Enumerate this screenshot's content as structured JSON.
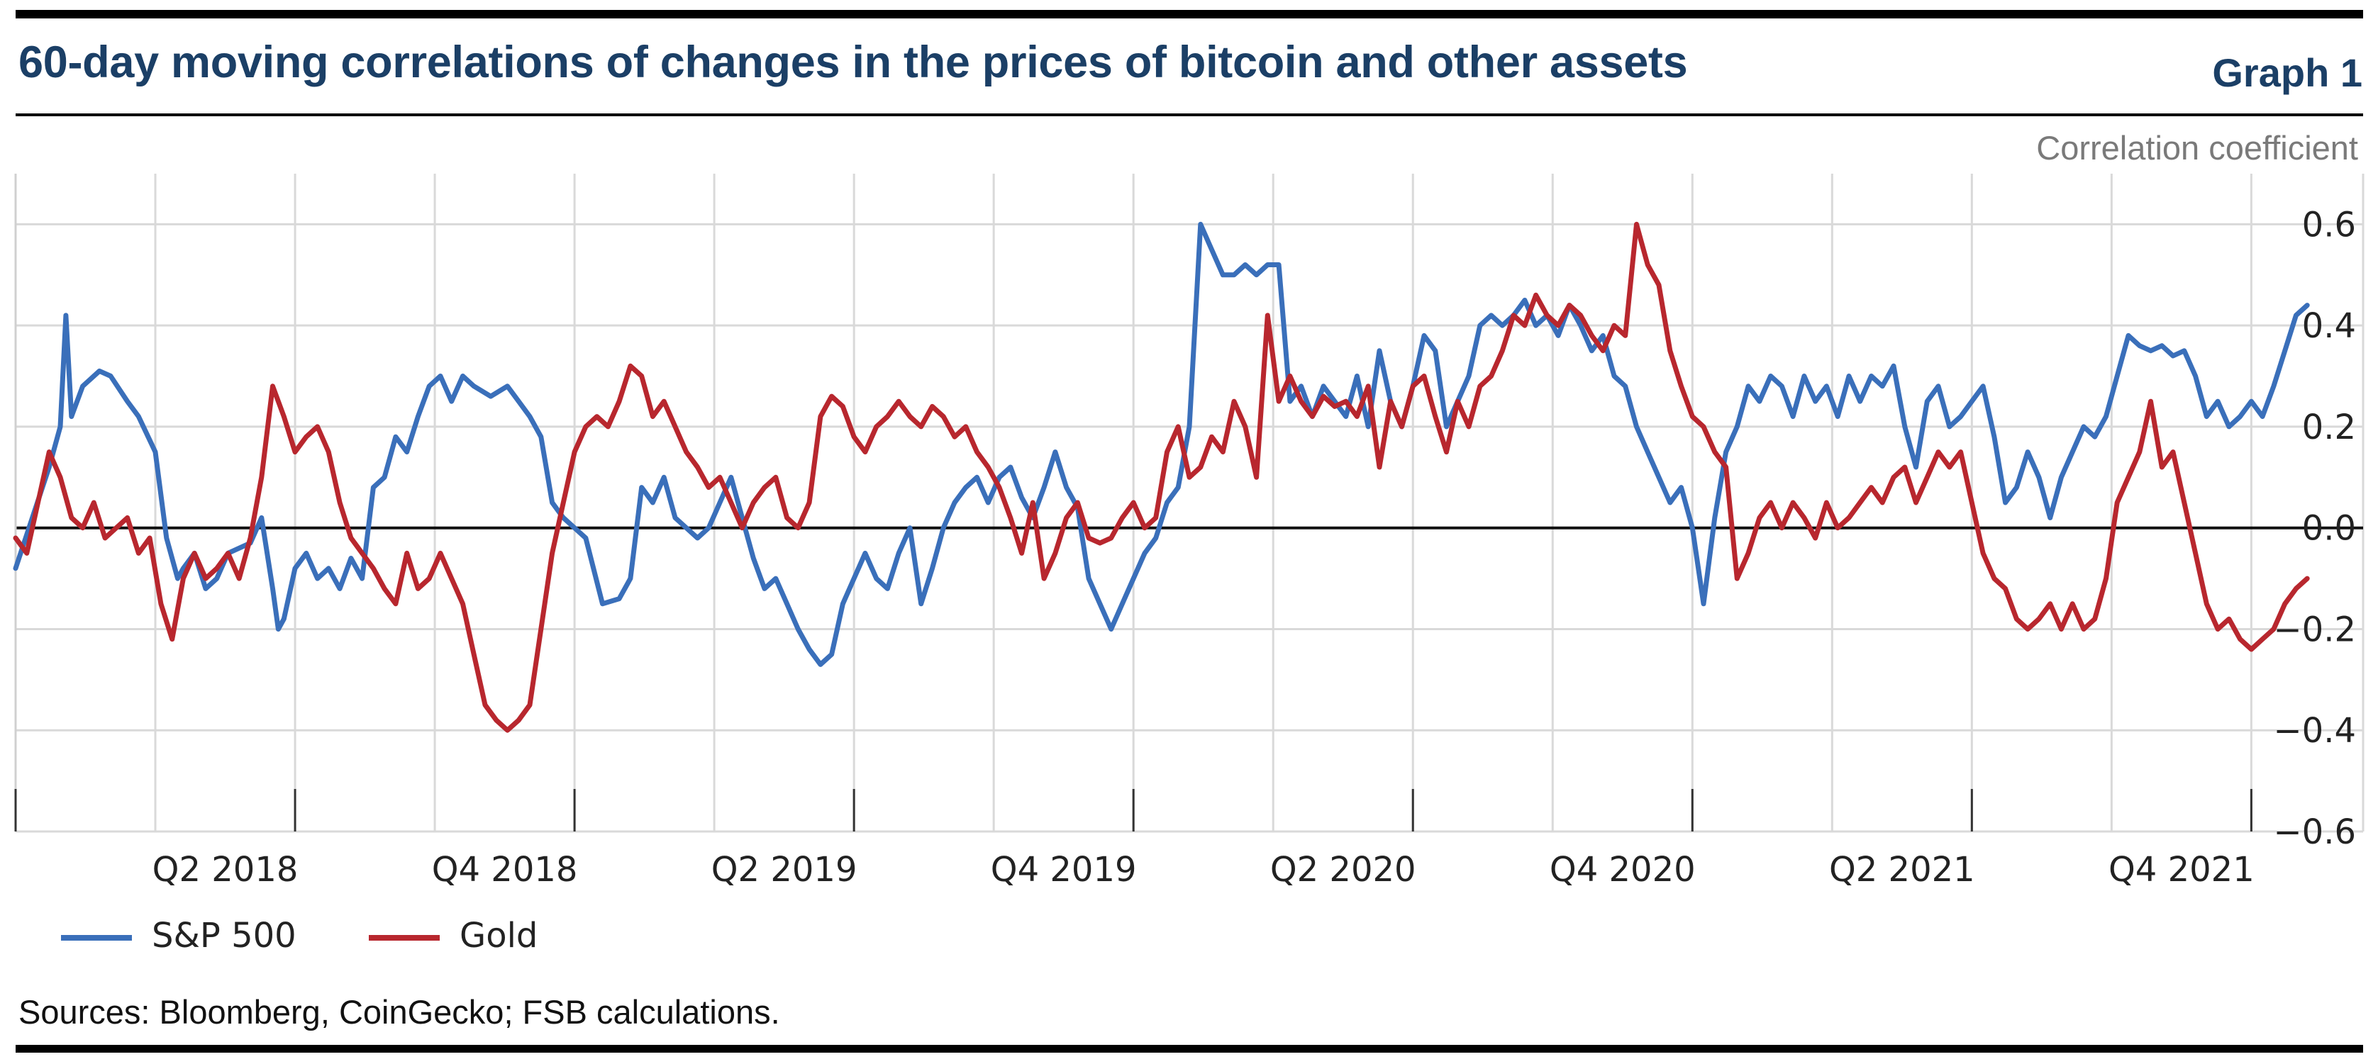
{
  "header": {
    "title": "60-day moving correlations of changes in the prices of bitcoin and other assets",
    "graph_label": "Graph 1"
  },
  "footer": {
    "sources": "Sources: Bloomberg, CoinGecko; FSB calculations."
  },
  "colors": {
    "sp500": "#3a6fba",
    "gold": "#b8272e",
    "title": "#1b3f66",
    "grid": "#d9d9d9"
  },
  "chart_data": {
    "type": "line",
    "title": "60-day moving correlations of changes in the prices of bitcoin and other assets",
    "ylabel": "Correlation coefficient",
    "xlabel": "",
    "ylim": [
      -0.6,
      0.7
    ],
    "yticks": [
      0.6,
      0.4,
      0.2,
      0.0,
      -0.2,
      -0.4,
      -0.6
    ],
    "ytick_labels": [
      "0.6",
      "0.4",
      "0.2",
      "0.0",
      "−0.2",
      "−0.4",
      "−0.6"
    ],
    "xlim": [
      2018.0,
      2022.2
    ],
    "x_major_ticks": [
      2018.0,
      2018.5,
      2019.0,
      2019.5,
      2020.0,
      2020.5,
      2021.0,
      2021.5,
      2022.0
    ],
    "x_gridlines": [
      2018.0,
      2018.25,
      2018.5,
      2018.75,
      2019.0,
      2019.25,
      2019.5,
      2019.75,
      2020.0,
      2020.25,
      2020.5,
      2020.75,
      2021.0,
      2021.25,
      2021.5,
      2021.75,
      2022.0,
      2022.25
    ],
    "x_labels": [
      {
        "label": "Q2 2018",
        "x": 2018.375
      },
      {
        "label": "Q4 2018",
        "x": 2018.875
      },
      {
        "label": "Q2 2019",
        "x": 2019.375
      },
      {
        "label": "Q4 2019",
        "x": 2019.875
      },
      {
        "label": "Q2 2020",
        "x": 2020.375
      },
      {
        "label": "Q4 2020",
        "x": 2020.875
      },
      {
        "label": "Q2 2021",
        "x": 2021.375
      },
      {
        "label": "Q4 2021",
        "x": 2021.875
      }
    ],
    "grid": true,
    "legend": "bottom-left",
    "series": [
      {
        "name": "S&P 500",
        "color": "#3a6fba",
        "x": [
          2018.0,
          2018.03,
          2018.06,
          2018.08,
          2018.09,
          2018.1,
          2018.12,
          2018.15,
          2018.17,
          2018.2,
          2018.22,
          2018.25,
          2018.27,
          2018.29,
          2018.3,
          2018.32,
          2018.34,
          2018.36,
          2018.38,
          2018.42,
          2018.44,
          2018.46,
          2018.47,
          2018.48,
          2018.5,
          2018.52,
          2018.54,
          2018.56,
          2018.58,
          2018.6,
          2018.62,
          2018.64,
          2018.66,
          2018.68,
          2018.7,
          2018.72,
          2018.74,
          2018.76,
          2018.78,
          2018.8,
          2018.82,
          2018.85,
          2018.88,
          2018.9,
          2018.92,
          2018.94,
          2018.96,
          2018.98,
          2019.0,
          2019.02,
          2019.05,
          2019.08,
          2019.1,
          2019.12,
          2019.14,
          2019.16,
          2019.18,
          2019.2,
          2019.22,
          2019.24,
          2019.26,
          2019.28,
          2019.3,
          2019.32,
          2019.34,
          2019.36,
          2019.38,
          2019.4,
          2019.42,
          2019.44,
          2019.46,
          2019.48,
          2019.5,
          2019.52,
          2019.54,
          2019.56,
          2019.58,
          2019.6,
          2019.62,
          2019.64,
          2019.66,
          2019.68,
          2019.7,
          2019.72,
          2019.74,
          2019.76,
          2019.78,
          2019.8,
          2019.82,
          2019.84,
          2019.86,
          2019.88,
          2019.9,
          2019.92,
          2019.94,
          2019.96,
          2019.98,
          2020.0,
          2020.02,
          2020.04,
          2020.06,
          2020.08,
          2020.1,
          2020.12,
          2020.14,
          2020.16,
          2020.18,
          2020.2,
          2020.22,
          2020.24,
          2020.26,
          2020.28,
          2020.3,
          2020.32,
          2020.34,
          2020.36,
          2020.38,
          2020.4,
          2020.42,
          2020.44,
          2020.46,
          2020.48,
          2020.5,
          2020.52,
          2020.54,
          2020.56,
          2020.58,
          2020.6,
          2020.62,
          2020.64,
          2020.66,
          2020.68,
          2020.7,
          2020.72,
          2020.74,
          2020.76,
          2020.78,
          2020.8,
          2020.82,
          2020.84,
          2020.86,
          2020.88,
          2020.9,
          2020.92,
          2020.94,
          2020.96,
          2020.98,
          2021.0,
          2021.02,
          2021.04,
          2021.06,
          2021.08,
          2021.1,
          2021.12,
          2021.14,
          2021.16,
          2021.18,
          2021.2,
          2021.22,
          2021.24,
          2021.26,
          2021.28,
          2021.3,
          2021.32,
          2021.34,
          2021.36,
          2021.38,
          2021.4,
          2021.42,
          2021.44,
          2021.46,
          2021.48,
          2021.5,
          2021.52,
          2021.54,
          2021.56,
          2021.58,
          2021.6,
          2021.62,
          2021.64,
          2021.66,
          2021.68,
          2021.7,
          2021.72,
          2021.74,
          2021.76,
          2021.78,
          2021.8,
          2021.82,
          2021.84,
          2021.86,
          2021.88,
          2021.9,
          2021.92,
          2021.94,
          2021.96,
          2021.98,
          2022.0,
          2022.02,
          2022.04,
          2022.06,
          2022.08,
          2022.1
        ],
        "values": [
          -0.08,
          0.02,
          0.12,
          0.2,
          0.42,
          0.22,
          0.28,
          0.31,
          0.3,
          0.25,
          0.22,
          0.15,
          -0.02,
          -0.1,
          -0.08,
          -0.05,
          -0.12,
          -0.1,
          -0.05,
          -0.03,
          0.02,
          -0.12,
          -0.2,
          -0.18,
          -0.08,
          -0.05,
          -0.1,
          -0.08,
          -0.12,
          -0.06,
          -0.1,
          0.08,
          0.1,
          0.18,
          0.15,
          0.22,
          0.28,
          0.3,
          0.25,
          0.3,
          0.28,
          0.26,
          0.28,
          0.25,
          0.22,
          0.18,
          0.05,
          0.02,
          0.0,
          -0.02,
          -0.15,
          -0.14,
          -0.1,
          0.08,
          0.05,
          0.1,
          0.02,
          0.0,
          -0.02,
          0.0,
          0.05,
          0.1,
          0.02,
          -0.06,
          -0.12,
          -0.1,
          -0.15,
          -0.2,
          -0.24,
          -0.27,
          -0.25,
          -0.15,
          -0.1,
          -0.05,
          -0.1,
          -0.12,
          -0.05,
          0.0,
          -0.15,
          -0.08,
          0.0,
          0.05,
          0.08,
          0.1,
          0.05,
          0.1,
          0.12,
          0.06,
          0.02,
          0.08,
          0.15,
          0.08,
          0.04,
          -0.1,
          -0.15,
          -0.2,
          -0.15,
          -0.1,
          -0.05,
          -0.02,
          0.05,
          0.08,
          0.2,
          0.6,
          0.55,
          0.5,
          0.5,
          0.52,
          0.5,
          0.52,
          0.52,
          0.25,
          0.28,
          0.22,
          0.28,
          0.25,
          0.22,
          0.3,
          0.2,
          0.35,
          0.25,
          0.2,
          0.28,
          0.38,
          0.35,
          0.2,
          0.25,
          0.3,
          0.4,
          0.42,
          0.4,
          0.42,
          0.45,
          0.4,
          0.42,
          0.38,
          0.44,
          0.4,
          0.35,
          0.38,
          0.3,
          0.28,
          0.2,
          0.15,
          0.1,
          0.05,
          0.08,
          0.0,
          -0.15,
          0.02,
          0.15,
          0.2,
          0.28,
          0.25,
          0.3,
          0.28,
          0.22,
          0.3,
          0.25,
          0.28,
          0.22,
          0.3,
          0.25,
          0.3,
          0.28,
          0.32,
          0.2,
          0.12,
          0.25,
          0.28,
          0.2,
          0.22,
          0.25,
          0.28,
          0.18,
          0.05,
          0.08,
          0.15,
          0.1,
          0.02,
          0.1,
          0.15,
          0.2,
          0.18,
          0.22,
          0.3,
          0.38,
          0.36,
          0.35,
          0.36,
          0.34,
          0.35,
          0.3,
          0.22,
          0.25,
          0.2,
          0.22,
          0.25,
          0.22,
          0.28,
          0.35,
          0.42,
          0.44
        ]
      },
      {
        "name": "Gold",
        "color": "#b8272e",
        "x": [
          2018.0,
          2018.02,
          2018.04,
          2018.06,
          2018.08,
          2018.1,
          2018.12,
          2018.14,
          2018.16,
          2018.18,
          2018.2,
          2018.22,
          2018.24,
          2018.26,
          2018.28,
          2018.3,
          2018.32,
          2018.34,
          2018.36,
          2018.38,
          2018.4,
          2018.42,
          2018.44,
          2018.46,
          2018.48,
          2018.5,
          2018.52,
          2018.54,
          2018.56,
          2018.58,
          2018.6,
          2018.62,
          2018.64,
          2018.66,
          2018.68,
          2018.7,
          2018.72,
          2018.74,
          2018.76,
          2018.78,
          2018.8,
          2018.82,
          2018.84,
          2018.86,
          2018.88,
          2018.9,
          2018.92,
          2018.94,
          2018.96,
          2018.98,
          2019.0,
          2019.02,
          2019.04,
          2019.06,
          2019.08,
          2019.1,
          2019.12,
          2019.14,
          2019.16,
          2019.18,
          2019.2,
          2019.22,
          2019.24,
          2019.26,
          2019.28,
          2019.3,
          2019.32,
          2019.34,
          2019.36,
          2019.38,
          2019.4,
          2019.42,
          2019.44,
          2019.46,
          2019.48,
          2019.5,
          2019.52,
          2019.54,
          2019.56,
          2019.58,
          2019.6,
          2019.62,
          2019.64,
          2019.66,
          2019.68,
          2019.7,
          2019.72,
          2019.74,
          2019.76,
          2019.78,
          2019.8,
          2019.82,
          2019.84,
          2019.86,
          2019.88,
          2019.9,
          2019.92,
          2019.94,
          2019.96,
          2019.98,
          2020.0,
          2020.02,
          2020.04,
          2020.06,
          2020.08,
          2020.1,
          2020.12,
          2020.14,
          2020.16,
          2020.18,
          2020.2,
          2020.22,
          2020.24,
          2020.26,
          2020.28,
          2020.3,
          2020.32,
          2020.34,
          2020.36,
          2020.38,
          2020.4,
          2020.42,
          2020.44,
          2020.46,
          2020.48,
          2020.5,
          2020.52,
          2020.54,
          2020.56,
          2020.58,
          2020.6,
          2020.62,
          2020.64,
          2020.66,
          2020.68,
          2020.7,
          2020.72,
          2020.74,
          2020.76,
          2020.78,
          2020.8,
          2020.82,
          2020.84,
          2020.86,
          2020.88,
          2020.9,
          2020.92,
          2020.94,
          2020.96,
          2020.98,
          2021.0,
          2021.02,
          2021.04,
          2021.06,
          2021.08,
          2021.1,
          2021.12,
          2021.14,
          2021.16,
          2021.18,
          2021.2,
          2021.22,
          2021.24,
          2021.26,
          2021.28,
          2021.3,
          2021.32,
          2021.34,
          2021.36,
          2021.38,
          2021.4,
          2021.42,
          2021.44,
          2021.46,
          2021.48,
          2021.5,
          2021.52,
          2021.54,
          2021.56,
          2021.58,
          2021.6,
          2021.62,
          2021.64,
          2021.66,
          2021.68,
          2021.7,
          2021.72,
          2021.74,
          2021.76,
          2021.78,
          2021.8,
          2021.82,
          2021.84,
          2021.86,
          2021.88,
          2021.9,
          2021.92,
          2021.94,
          2021.96,
          2021.98,
          2022.0,
          2022.02,
          2022.04,
          2022.06,
          2022.08,
          2022.1
        ],
        "values": [
          -0.02,
          -0.05,
          0.05,
          0.15,
          0.1,
          0.02,
          0.0,
          0.05,
          -0.02,
          0.0,
          0.02,
          -0.05,
          -0.02,
          -0.15,
          -0.22,
          -0.1,
          -0.05,
          -0.1,
          -0.08,
          -0.05,
          -0.1,
          -0.02,
          0.1,
          0.28,
          0.22,
          0.15,
          0.18,
          0.2,
          0.15,
          0.05,
          -0.02,
          -0.05,
          -0.08,
          -0.12,
          -0.15,
          -0.05,
          -0.12,
          -0.1,
          -0.05,
          -0.1,
          -0.15,
          -0.25,
          -0.35,
          -0.38,
          -0.4,
          -0.38,
          -0.35,
          -0.2,
          -0.05,
          0.05,
          0.15,
          0.2,
          0.22,
          0.2,
          0.25,
          0.32,
          0.3,
          0.22,
          0.25,
          0.2,
          0.15,
          0.12,
          0.08,
          0.1,
          0.05,
          0.0,
          0.05,
          0.08,
          0.1,
          0.02,
          0.0,
          0.05,
          0.22,
          0.26,
          0.24,
          0.18,
          0.15,
          0.2,
          0.22,
          0.25,
          0.22,
          0.2,
          0.24,
          0.22,
          0.18,
          0.2,
          0.15,
          0.12,
          0.08,
          0.02,
          -0.05,
          0.05,
          -0.1,
          -0.05,
          0.02,
          0.05,
          -0.02,
          -0.03,
          -0.02,
          0.02,
          0.05,
          0.0,
          0.02,
          0.15,
          0.2,
          0.1,
          0.12,
          0.18,
          0.15,
          0.25,
          0.2,
          0.1,
          0.42,
          0.25,
          0.3,
          0.25,
          0.22,
          0.26,
          0.24,
          0.25,
          0.22,
          0.28,
          0.12,
          0.25,
          0.2,
          0.28,
          0.3,
          0.22,
          0.15,
          0.25,
          0.2,
          0.28,
          0.3,
          0.35,
          0.42,
          0.4,
          0.46,
          0.42,
          0.4,
          0.44,
          0.42,
          0.38,
          0.35,
          0.4,
          0.38,
          0.6,
          0.52,
          0.48,
          0.35,
          0.28,
          0.22,
          0.2,
          0.15,
          0.12,
          -0.1,
          -0.05,
          0.02,
          0.05,
          0.0,
          0.05,
          0.02,
          -0.02,
          0.05,
          0.0,
          0.02,
          0.05,
          0.08,
          0.05,
          0.1,
          0.12,
          0.05,
          0.1,
          0.15,
          0.12,
          0.15,
          0.05,
          -0.05,
          -0.1,
          -0.12,
          -0.18,
          -0.2,
          -0.18,
          -0.15,
          -0.2,
          -0.15,
          -0.2,
          -0.18,
          -0.1,
          0.05,
          0.1,
          0.15,
          0.25,
          0.12,
          0.15,
          0.05,
          -0.05,
          -0.15,
          -0.2,
          -0.18,
          -0.22,
          -0.24,
          -0.22,
          -0.2,
          -0.15,
          -0.12,
          -0.1
        ]
      }
    ]
  }
}
